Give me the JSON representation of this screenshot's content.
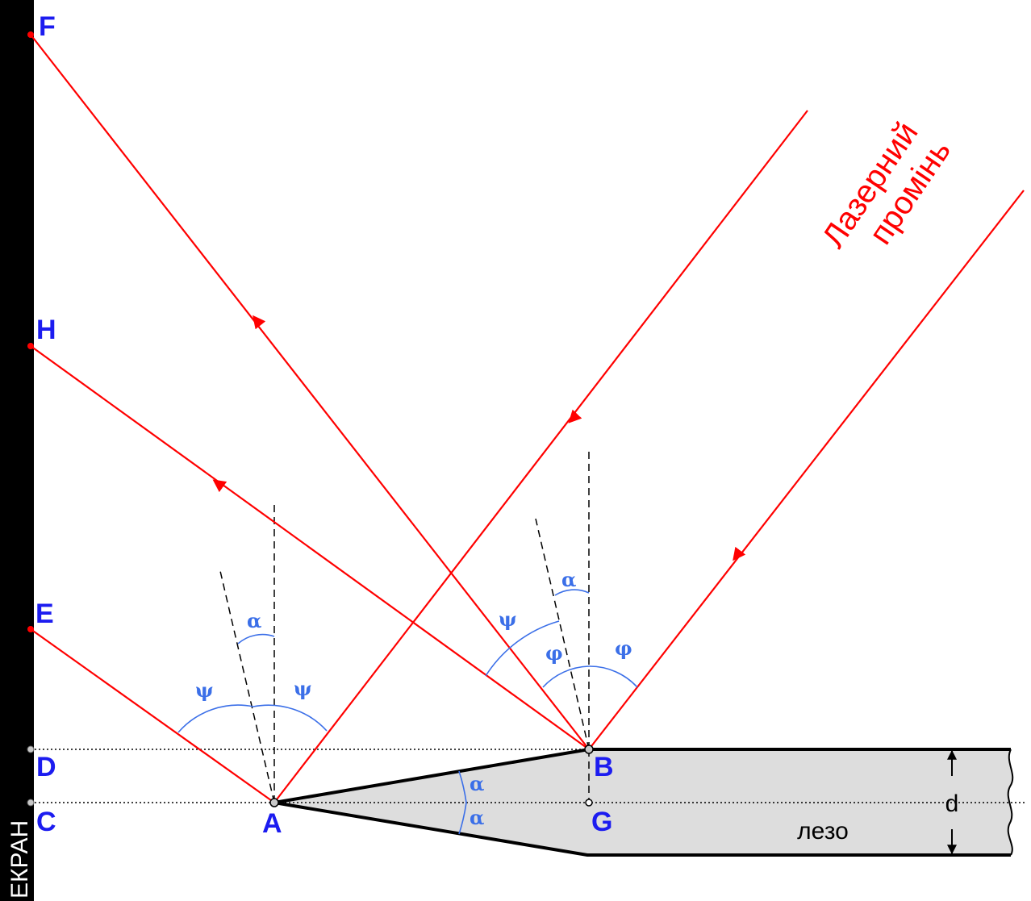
{
  "points": {
    "F": "F",
    "H": "H",
    "E": "E",
    "D": "D",
    "C": "C",
    "A": "A",
    "B": "B",
    "G": "G"
  },
  "angles": {
    "alpha": "α",
    "psi": "ψ",
    "phi": "φ"
  },
  "labels": {
    "screen": "ЕКРАН",
    "blade": "лезо",
    "thickness": "d",
    "laser_line1": "Лазерний",
    "laser_line2": "промінь"
  },
  "colors": {
    "laser": "#ff0000",
    "point_label": "#1c1cf0",
    "angle": "#3b6fe8",
    "blade_fill": "#dddddd",
    "screen": "#000000"
  }
}
